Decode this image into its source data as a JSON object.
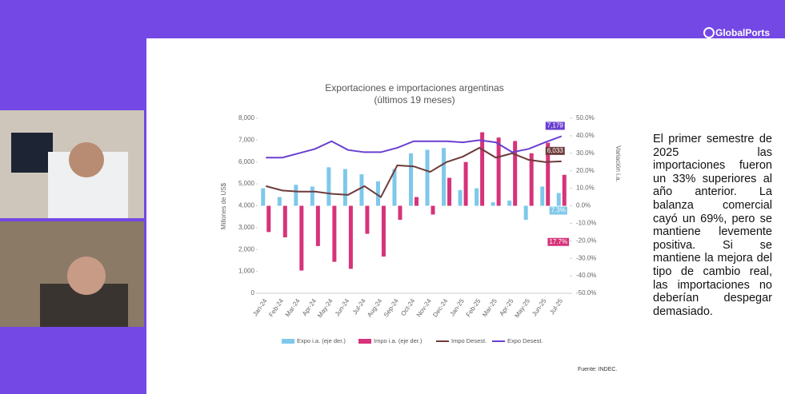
{
  "brand": "GlobalPorts",
  "slide": {
    "text": "El primer semestre de 2025 las importaciones fueron un 33% superiores al año anterior. La balanza comercial cayó un 69%, pero se mantiene levemente positiva. Si se mantiene la mejora del tipo de cambio real, las importaciones no deberían despegar demasiado."
  },
  "chart_data": {
    "type": "bar",
    "title": "Exportaciones e importaciones argentinas",
    "subtitle": "(últimos 19 meses)",
    "y_label": "Millones de US$",
    "y2_label": "Variación i.a.",
    "source": "Fuente: INDEC.",
    "categories": [
      "Jan-24",
      "Feb-24",
      "Mar-24",
      "Apr-24",
      "May-24",
      "Jun-24",
      "Jul-24",
      "Aug-24",
      "Sep-24",
      "Oct-24",
      "Nov-24",
      "Dec-24",
      "Jan-25",
      "Feb-25",
      "Mar-25",
      "Apr-25",
      "May-25",
      "Jun-25",
      "Jul-25"
    ],
    "ylim": [
      0,
      8000
    ],
    "yticks": [
      0,
      {
        "value": 1000,
        "label": "1,000"
      },
      {
        "value": 2000,
        "label": "2,000"
      },
      {
        "value": 3000,
        "label": "3,000"
      },
      {
        "value": 4000,
        "label": "4,000"
      },
      {
        "value": 5000,
        "label": "5,000"
      },
      {
        "value": 6000,
        "label": "6,000"
      },
      {
        "value": 7000,
        "label": "7,000"
      },
      {
        "value": 8000,
        "label": "8,000"
      }
    ],
    "y2lim": [
      -50,
      50
    ],
    "y2ticks": [
      {
        "value": -50,
        "label": "-50.0%"
      },
      {
        "value": -40,
        "label": "-40.0%"
      },
      {
        "value": -30,
        "label": "-30.0%"
      },
      {
        "value": -20,
        "label": "-20.0%"
      },
      {
        "value": -10,
        "label": "-10.0%"
      },
      {
        "value": 0,
        "label": "0.0%"
      },
      {
        "value": 10,
        "label": "10.0%"
      },
      {
        "value": 20,
        "label": "20.0%"
      },
      {
        "value": 30,
        "label": "30.0%"
      },
      {
        "value": 40,
        "label": "40.0%"
      },
      {
        "value": 50,
        "label": "50.0%"
      }
    ],
    "legend": "bottom",
    "series": [
      {
        "name": "Expo i.a. (eje der.)",
        "type": "bar",
        "axis": "y2",
        "color": "#7ec8ea",
        "values": [
          10,
          5,
          12,
          11,
          22,
          21,
          18,
          14,
          21,
          30,
          32,
          33,
          9,
          10,
          2,
          3,
          -8,
          11,
          7.3
        ],
        "value_labels": [
          null,
          null,
          null,
          null,
          null,
          null,
          null,
          null,
          null,
          null,
          null,
          null,
          null,
          null,
          null,
          null,
          null,
          null,
          "7.3%"
        ]
      },
      {
        "name": "Impo i.a. (eje der.)",
        "type": "bar",
        "axis": "y2",
        "color": "#d6337a",
        "values": [
          -15,
          -18,
          -37,
          -23,
          -32,
          -36,
          -16,
          -29,
          -8,
          5,
          -5,
          16,
          25,
          42,
          39,
          37,
          30,
          36,
          17.7
        ],
        "value_labels": [
          null,
          null,
          null,
          null,
          null,
          null,
          null,
          null,
          null,
          null,
          null,
          null,
          null,
          null,
          null,
          null,
          null,
          null,
          "17.7%"
        ]
      },
      {
        "name": "Impo Desest.",
        "type": "line",
        "color": "#6e3b3b",
        "values": [
          4900,
          4700,
          4650,
          4650,
          4550,
          4500,
          4900,
          4400,
          5850,
          5800,
          5550,
          6000,
          6250,
          6650,
          6200,
          6400,
          6100,
          6000,
          6033
        ],
        "value_labels": [
          null,
          null,
          null,
          null,
          null,
          null,
          null,
          null,
          null,
          null,
          null,
          null,
          null,
          null,
          null,
          null,
          null,
          null,
          "6,033"
        ]
      },
      {
        "name": "Expo Desest.",
        "type": "line",
        "color": "#6a3fd0",
        "values": [
          6200,
          6200,
          6400,
          6600,
          6950,
          6550,
          6450,
          6450,
          6650,
          6950,
          6950,
          6950,
          6900,
          7000,
          6900,
          6450,
          6600,
          6900,
          7179
        ],
        "value_labels": [
          null,
          null,
          null,
          null,
          null,
          null,
          null,
          null,
          null,
          null,
          null,
          null,
          null,
          null,
          null,
          null,
          null,
          null,
          "7,179"
        ]
      }
    ]
  }
}
